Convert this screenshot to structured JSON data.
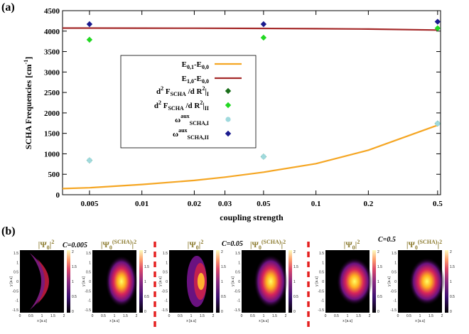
{
  "panel_a_label": "(a)",
  "panel_b_label": "(b)",
  "chart_data": {
    "type": "line",
    "xscale": "log",
    "x_ticks": [
      0.005,
      0.01,
      0.02,
      0.03,
      0.05,
      0.1,
      0.2,
      0.5
    ],
    "x_tick_labels": [
      "0.005",
      "0.01",
      "0.02",
      "0.03",
      "0.05",
      "0.1",
      "0.2",
      "0.5"
    ],
    "xlim": [
      0.0035,
      0.52
    ],
    "ylim": [
      0,
      4500
    ],
    "y_ticks": [
      0,
      500,
      1000,
      1500,
      2000,
      2500,
      3000,
      3500,
      4000,
      4500
    ],
    "xlabel": "coupling strength",
    "ylabel": "SCHA Frequencies [cm",
    "ylabel_sup": "-1",
    "ylabel_end": "]",
    "grid": false,
    "legend_position": "center",
    "series": [
      {
        "name": "E_{0,1}-E_{0,0}",
        "kind": "line",
        "color": "#f5a623",
        "x": [
          0.0035,
          0.005,
          0.01,
          0.02,
          0.03,
          0.05,
          0.1,
          0.2,
          0.5
        ],
        "y": [
          150,
          170,
          250,
          350,
          430,
          550,
          760,
          1090,
          1700
        ]
      },
      {
        "name": "E_{1,0}-E_{0,0}",
        "kind": "line",
        "color": "#a52a2a",
        "x": [
          0.0035,
          0.005,
          0.01,
          0.02,
          0.05,
          0.1,
          0.2,
          0.5
        ],
        "y": [
          4075,
          4075,
          4072,
          4070,
          4065,
          4058,
          4050,
          4025
        ]
      },
      {
        "name": "d2F_I",
        "kind": "scatter",
        "marker": "diamond",
        "color": "#1a6e1a",
        "x": [
          0.005,
          0.05,
          0.5
        ],
        "y": [
          840,
          930,
          1740
        ]
      },
      {
        "name": "d2F_II",
        "kind": "scatter",
        "marker": "diamond",
        "color": "#22d822",
        "x": [
          0.005,
          0.05,
          0.5
        ],
        "y": [
          3790,
          3840,
          4070
        ]
      },
      {
        "name": "omega_I",
        "kind": "scatter",
        "marker": "circle",
        "color": "#9fd9dd",
        "x": [
          0.005,
          0.05,
          0.5
        ],
        "y": [
          840,
          930,
          1740
        ]
      },
      {
        "name": "omega_II",
        "kind": "scatter",
        "marker": "diamond",
        "color": "#1a1a8e",
        "x": [
          0.005,
          0.05,
          0.5
        ],
        "y": [
          4170,
          4170,
          4230
        ]
      }
    ],
    "legend": [
      {
        "main": "E",
        "sub": "0,1",
        "mid": "-E",
        "sub2": "0,0",
        "end": ""
      },
      {
        "main": "E",
        "sub": "1,0",
        "mid": "-E",
        "sub2": "0,0",
        "end": ""
      },
      {
        "main": "d",
        "sup": "2",
        "mid": " F",
        "sub": "SCHA",
        "mid2": " /d R",
        "sup2": "2",
        "end": "|",
        "sub2": "I"
      },
      {
        "main": "d",
        "sup": "2",
        "mid": " F",
        "sub": "SCHA",
        "mid2": " /d R",
        "sup2": "2",
        "end": "|",
        "sub2": "II"
      },
      {
        "main": "ω",
        "sup": "aux",
        "sub": "SCHA,I"
      },
      {
        "main": "ω",
        "sup": "aux",
        "sub": "SCHA,II"
      }
    ]
  },
  "panel_b": {
    "groups": [
      {
        "label": "C=0.005"
      },
      {
        "label": "C=0.05"
      },
      {
        "label": "C=0.5"
      }
    ],
    "title_exact_main": "|Ψ",
    "title_exact_sub": "0",
    "title_exact_end": "|",
    "title_exact_sup": "2",
    "title_scha_main": "|Ψ",
    "title_scha_sub": "0",
    "title_scha_sup": "(SCHA)",
    "title_scha_end": "|",
    "title_scha_sup2": "2",
    "x_axis_label": "x [a.u]",
    "y_axis_label": "y [a.u]",
    "x_ticks": [
      "0",
      "0.5",
      "1",
      "1.5",
      "2"
    ],
    "y_ticks": [
      "1.5",
      "1",
      "0.5",
      "0",
      "-0.5",
      "-1",
      "-1.5"
    ],
    "colorbar_ticks": [
      "2",
      "1.5",
      "1",
      "0.5",
      "0"
    ]
  }
}
